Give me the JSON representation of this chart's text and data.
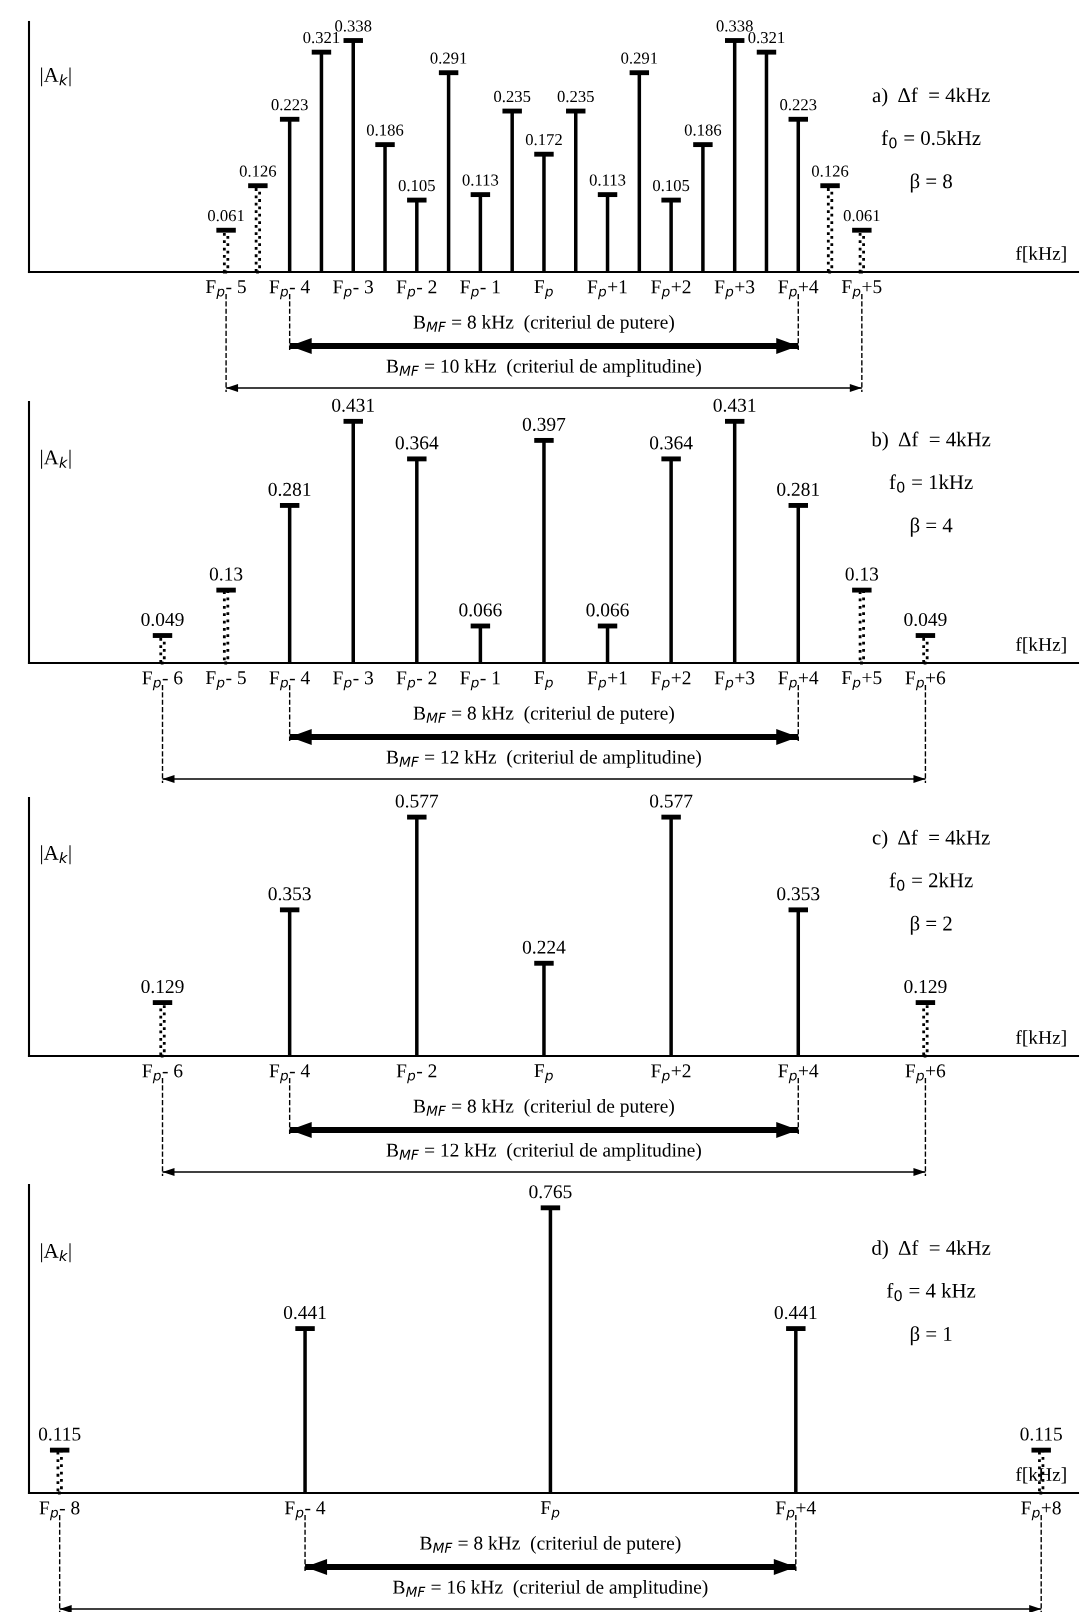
{
  "chart_data": [
    {
      "type": "bar",
      "ylabel": "|A$_{k}$|",
      "xlabel": "f[kHz]",
      "xlim": [
        -8.1,
        8.4
      ],
      "tick_labels": "x",
      "data_labels": true,
      "xticks": [
        {
          "value": -5,
          "label": "F$_{p}$- 5"
        },
        {
          "value": -4,
          "label": "F$_{p}$- 4"
        },
        {
          "value": -3,
          "label": "F$_{p}$- 3"
        },
        {
          "value": -2,
          "label": "F$_{p}$- 2"
        },
        {
          "value": -1,
          "label": "F$_{p}$- 1"
        },
        {
          "value": 0,
          "label": "F$_{p}$"
        },
        {
          "value": 1,
          "label": "F$_{p}$+1"
        },
        {
          "value": 2,
          "label": "F$_{p}$+2"
        },
        {
          "value": 3,
          "label": "F$_{p}$+3"
        },
        {
          "value": 4,
          "label": "F$_{p}$+4"
        },
        {
          "value": 5,
          "label": "F$_{p}$+5"
        }
      ],
      "series": [
        {
          "color": "#000000",
          "line_style": "dotted",
          "x": [
            -5,
            -4.5
          ],
          "values": [
            0.061,
            0.126
          ]
        },
        {
          "color": "#000000",
          "line_style": "solid",
          "x": [
            -4,
            -3.5,
            -3,
            -2.5,
            -2,
            -1.5,
            -1,
            -0.5,
            0,
            0.5,
            1,
            1.5,
            2,
            2.5,
            3,
            3.5,
            4
          ],
          "values": [
            0.223,
            0.321,
            0.338,
            0.186,
            0.105,
            0.291,
            0.113,
            0.235,
            0.172,
            0.235,
            0.113,
            0.291,
            0.105,
            0.186,
            0.338,
            0.321,
            0.223
          ]
        },
        {
          "color": "#000000",
          "line_style": "dotted",
          "x": [
            4.5,
            5
          ],
          "values": [
            0.126,
            0.061
          ]
        }
      ],
      "annotations": [
        "a)  Δf  = 4kHz",
        "f$_{0}$ = 0.5kHz",
        "β = 8",
        "B$_{MF}$ = 8 kHz  (criteriul de putere)",
        "B$_{MF}$ = 10 kHz  (criteriul de amplitudine)"
      ]
    },
    {
      "type": "bar",
      "ylabel": "|A$_{k}$|",
      "xlabel": "f[kHz]",
      "xlim": [
        -8.1,
        8.4
      ],
      "tick_labels": "x",
      "data_labels": true,
      "xticks": [
        {
          "value": -6,
          "label": "F$_{p}$- 6"
        },
        {
          "value": -5,
          "label": "F$_{p}$- 5"
        },
        {
          "value": -4,
          "label": "F$_{p}$- 4"
        },
        {
          "value": -3,
          "label": "F$_{p}$- 3"
        },
        {
          "value": -2,
          "label": "F$_{p}$- 2"
        },
        {
          "value": -1,
          "label": "F$_{p}$- 1"
        },
        {
          "value": 0,
          "label": "F$_{p}$"
        },
        {
          "value": 1,
          "label": "F$_{p}$+1"
        },
        {
          "value": 2,
          "label": "F$_{p}$+2"
        },
        {
          "value": 3,
          "label": "F$_{p}$+3"
        },
        {
          "value": 4,
          "label": "F$_{p}$+4"
        },
        {
          "value": 5,
          "label": "F$_{p}$+5"
        },
        {
          "value": 6,
          "label": "F$_{p}$+6"
        }
      ],
      "series": [
        {
          "color": "#000000",
          "line_style": "dotted",
          "x": [
            -6,
            -5
          ],
          "values": [
            0.049,
            0.13
          ]
        },
        {
          "color": "#000000",
          "line_style": "solid",
          "x": [
            -4,
            -3,
            -2,
            -1,
            0,
            1,
            2,
            3,
            4
          ],
          "values": [
            0.281,
            0.431,
            0.364,
            0.066,
            0.397,
            0.066,
            0.364,
            0.431,
            0.281
          ]
        },
        {
          "color": "#000000",
          "line_style": "dotted",
          "x": [
            5,
            6
          ],
          "values": [
            0.13,
            0.049
          ]
        }
      ],
      "annotations": [
        "b)  Δf  = 4kHz",
        "f$_{0}$ = 1kHz",
        "β = 4",
        "B$_{MF}$ = 8 kHz  (criteriul de putere)",
        "B$_{MF}$ = 12 kHz  (criteriul de amplitudine)"
      ]
    },
    {
      "type": "bar",
      "ylabel": "|A$_{k}$|",
      "xlabel": "f[kHz]",
      "xlim": [
        -8.1,
        8.4
      ],
      "tick_labels": "x",
      "data_labels": true,
      "xticks": [
        {
          "value": -6,
          "label": "F$_{p}$- 6"
        },
        {
          "value": -4,
          "label": "F$_{p}$- 4"
        },
        {
          "value": -2,
          "label": "F$_{p}$- 2"
        },
        {
          "value": 0,
          "label": "F$_{p}$"
        },
        {
          "value": 2,
          "label": "F$_{p}$+2"
        },
        {
          "value": 4,
          "label": "F$_{p}$+4"
        },
        {
          "value": 6,
          "label": "F$_{p}$+6"
        }
      ],
      "series": [
        {
          "color": "#000000",
          "line_style": "dotted",
          "x": [
            -6
          ],
          "values": [
            0.129
          ]
        },
        {
          "color": "#000000",
          "line_style": "solid",
          "x": [
            -4,
            -2,
            0,
            2,
            4
          ],
          "values": [
            0.353,
            0.577,
            0.224,
            0.577,
            0.353
          ]
        },
        {
          "color": "#000000",
          "line_style": "dotted",
          "x": [
            6
          ],
          "values": [
            0.129
          ]
        }
      ],
      "annotations": [
        "c)  Δf  = 4kHz",
        "f$_{0}$ = 2kHz",
        "β = 2",
        "B$_{MF}$ = 8 kHz  (criteriul de putere)",
        "B$_{MF}$ = 12 kHz  (criteriul de amplitudine)"
      ]
    },
    {
      "type": "bar",
      "ylabel": "|A$_{k}$|",
      "xlabel": "f[kHz]",
      "xlim": [
        -8.5,
        8.6
      ],
      "tick_labels": "x",
      "data_labels": true,
      "xticks": [
        {
          "value": -8,
          "label": "F$_{p}$- 8"
        },
        {
          "value": -4,
          "label": "F$_{p}$- 4"
        },
        {
          "value": 0,
          "label": "F$_{p}$"
        },
        {
          "value": 4,
          "label": "F$_{p}$+4"
        },
        {
          "value": 8,
          "label": "F$_{p}$+8"
        }
      ],
      "series": [
        {
          "color": "#000000",
          "line_style": "dotted",
          "x": [
            -8
          ],
          "values": [
            0.115
          ]
        },
        {
          "color": "#000000",
          "line_style": "solid",
          "x": [
            -4,
            0,
            4
          ],
          "values": [
            0.441,
            0.765,
            0.441
          ]
        },
        {
          "color": "#000000",
          "line_style": "dotted",
          "x": [
            8
          ],
          "values": [
            0.115
          ]
        }
      ],
      "annotations": [
        "d)  Δf  = 4kHz",
        "f$_{0}$ = 4 kHz",
        "β = 1",
        "B$_{MF}$ = 8 kHz  (criteriul de putere)",
        "B$_{MF}$ = 16 kHz  (criteriul de amplitudine)"
      ]
    }
  ]
}
